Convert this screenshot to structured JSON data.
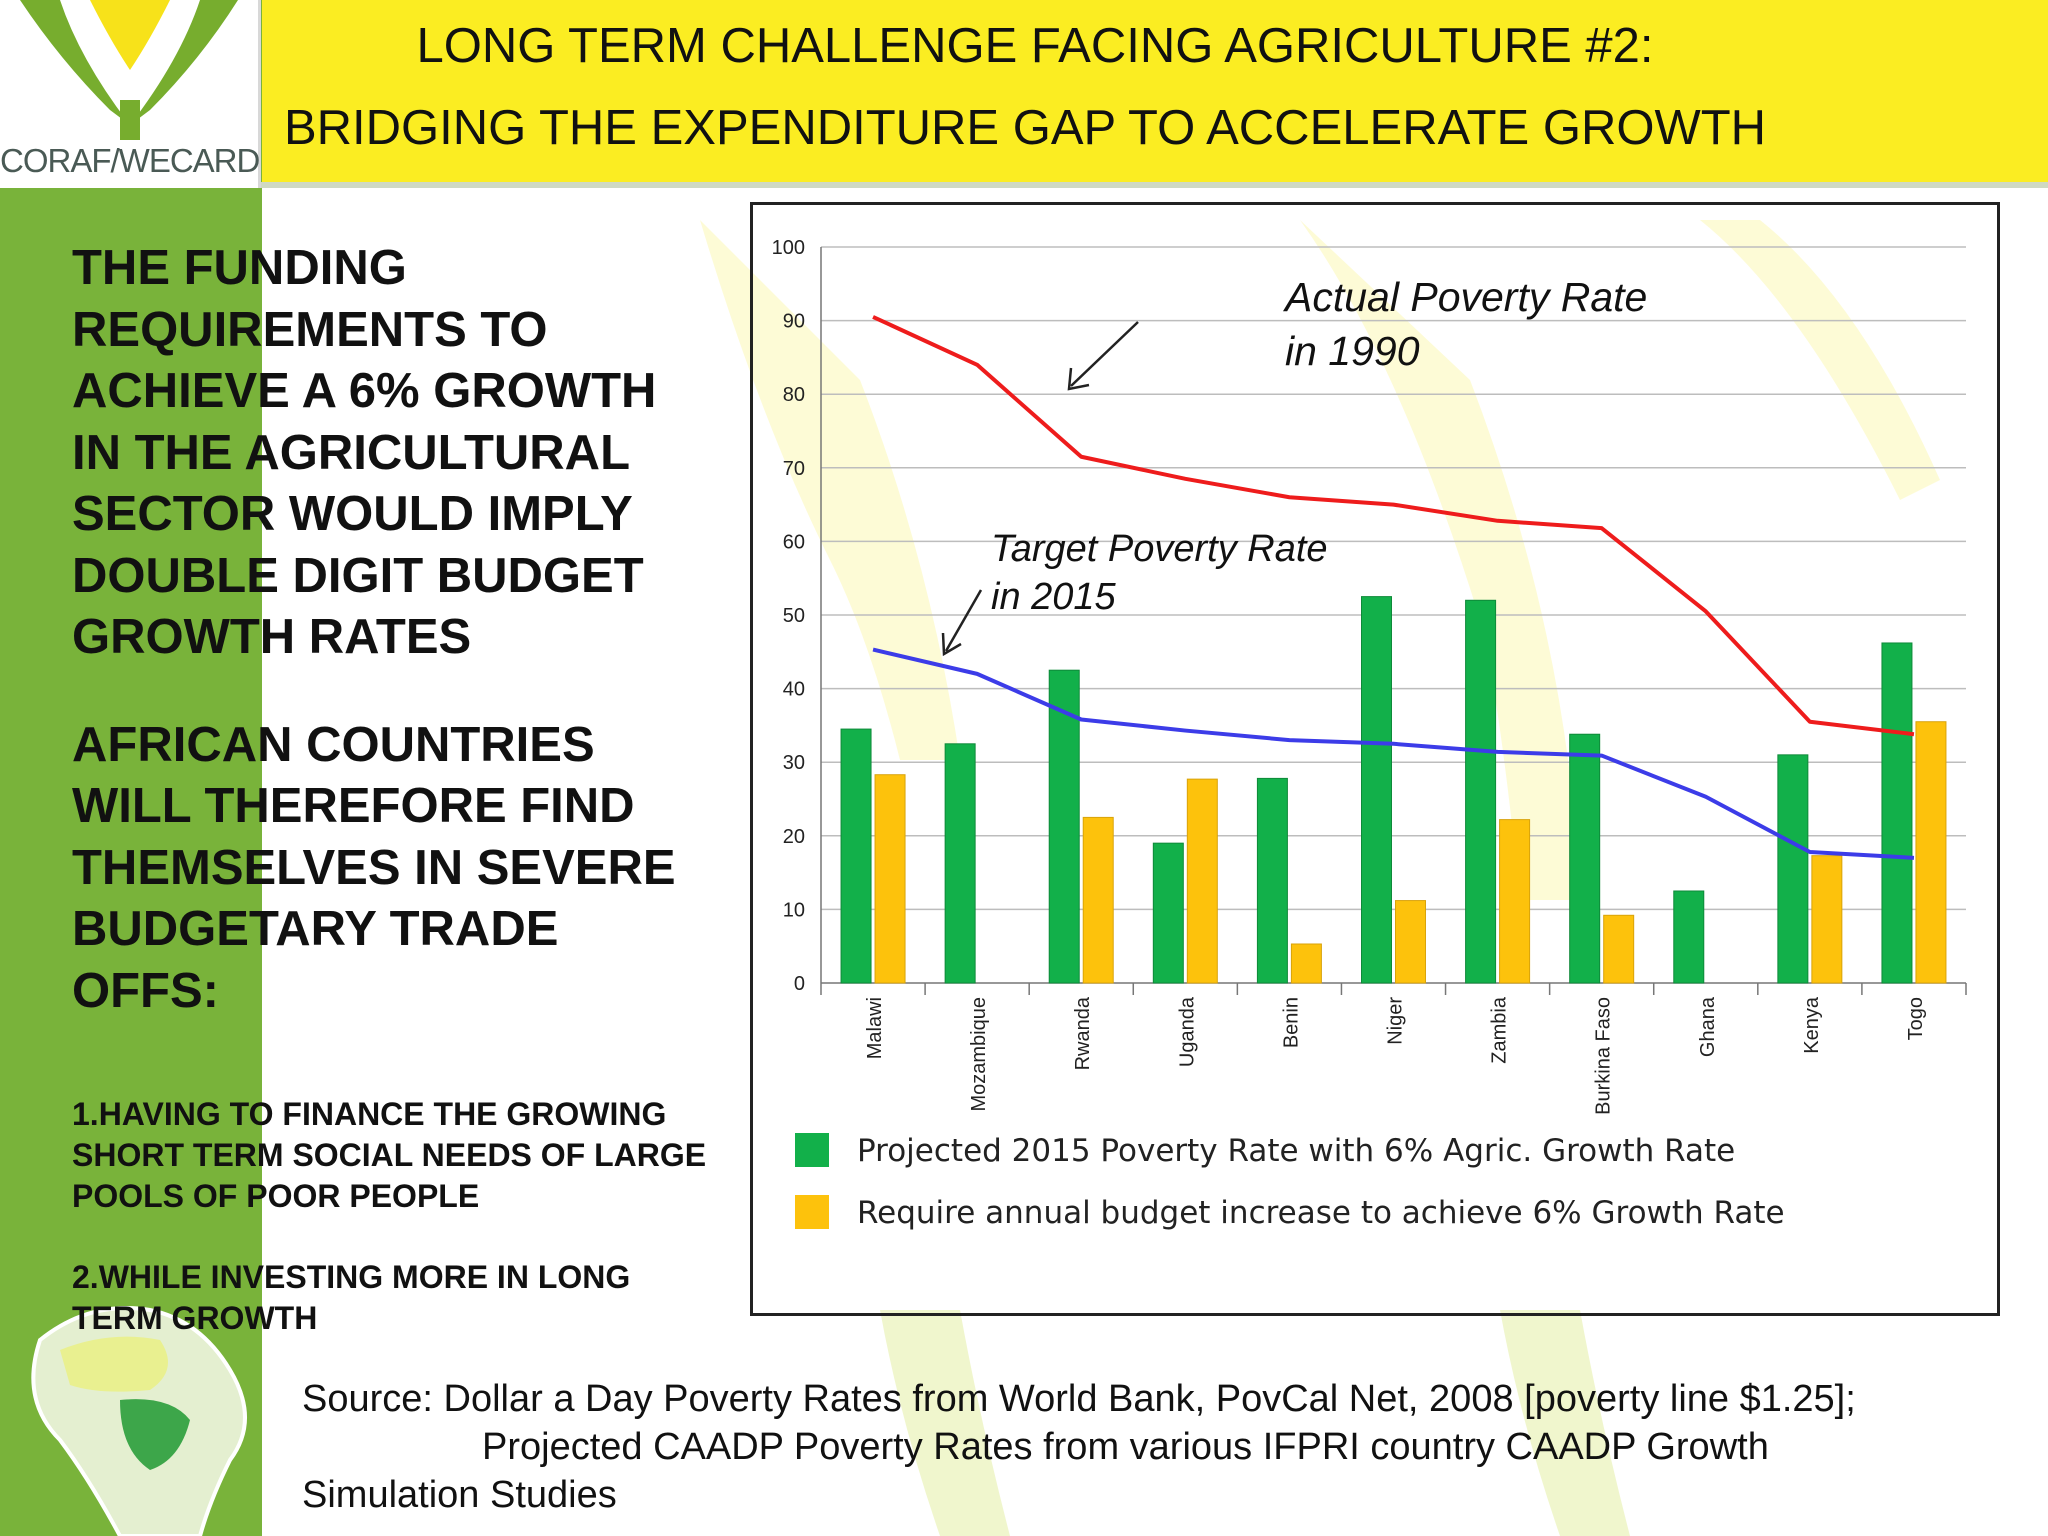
{
  "logo": {
    "text": "CORAF/WECARD"
  },
  "title": {
    "line1": "LONG TERM CHALLENGE FACING AGRICULTURE #2:",
    "line2": "BRIDGING THE EXPENDITURE GAP TO ACCELERATE GROWTH"
  },
  "left": {
    "para1": "THE FUNDING\nREQUIREMENTS TO\nACHIEVE A 6% GROWTH\nIN THE AGRICULTURAL\nSECTOR WOULD IMPLY\nDOUBLE DIGIT BUDGET\nGROWTH RATES",
    "para2": "AFRICAN COUNTRIES\nWILL THEREFORE FIND\nTHEMSELVES IN SEVERE\nBUDGETARY TRADE\nOFFS:",
    "item1": "1.HAVING TO FINANCE THE GROWING\nSHORT TERM SOCIAL NEEDS OF LARGE\nPOOLS OF POOR PEOPLE",
    "item2": "2.WHILE INVESTING MORE IN LONG\nTERM GROWTH"
  },
  "source": {
    "line1": "Source: Dollar a Day Poverty Rates from World Bank, PovCal Net, 2008 [poverty line $1.25];",
    "line2": "Projected CAADP Poverty Rates from various IFPRI country CAADP Growth",
    "line3": "Simulation Studies"
  },
  "chart_data": {
    "type": "bar",
    "categories": [
      "Malawi",
      "Mozambique",
      "Rwanda",
      "Uganda",
      "Benin",
      "Niger",
      "Zambia",
      "Burkina Faso",
      "Ghana",
      "Kenya",
      "Togo"
    ],
    "ylim": [
      0,
      100
    ],
    "yticks": [
      0,
      10,
      20,
      30,
      40,
      50,
      60,
      70,
      80,
      90,
      100
    ],
    "grid": true,
    "legend_position": "bottom",
    "series": [
      {
        "name": "Projected 2015 Poverty Rate with 6% Agric. Growth Rate",
        "kind": "bar",
        "color": "#12b04a",
        "values": [
          34.5,
          32.5,
          42.5,
          19,
          27.8,
          52.5,
          52,
          33.8,
          12.5,
          31,
          46.2
        ]
      },
      {
        "name": "Require annual budget increase to achieve 6% Growth Rate",
        "kind": "bar",
        "color": "#fdc20c",
        "values": [
          28.3,
          null,
          22.5,
          27.7,
          5.3,
          11.2,
          22.2,
          9.2,
          null,
          17.3,
          35.5
        ]
      },
      {
        "name": "Actual Poverty Rate in 1990",
        "kind": "line",
        "color": "#ee1c1c",
        "values": [
          90.5,
          84,
          71.5,
          68.5,
          66,
          65,
          62.8,
          61.8,
          50.5,
          35.5,
          33.8
        ]
      },
      {
        "name": "Target Poverty Rate in 2015",
        "kind": "line",
        "color": "#3c3ce8",
        "values": [
          45.3,
          42,
          35.8,
          34.3,
          33,
          32.5,
          31.4,
          30.9,
          25.3,
          17.8,
          17
        ]
      }
    ],
    "annotations": {
      "actual_line1": "Actual Poverty Rate",
      "actual_line2": "in 1990",
      "target_line1": "Target Poverty Rate",
      "target_line2": "in 2015"
    }
  }
}
